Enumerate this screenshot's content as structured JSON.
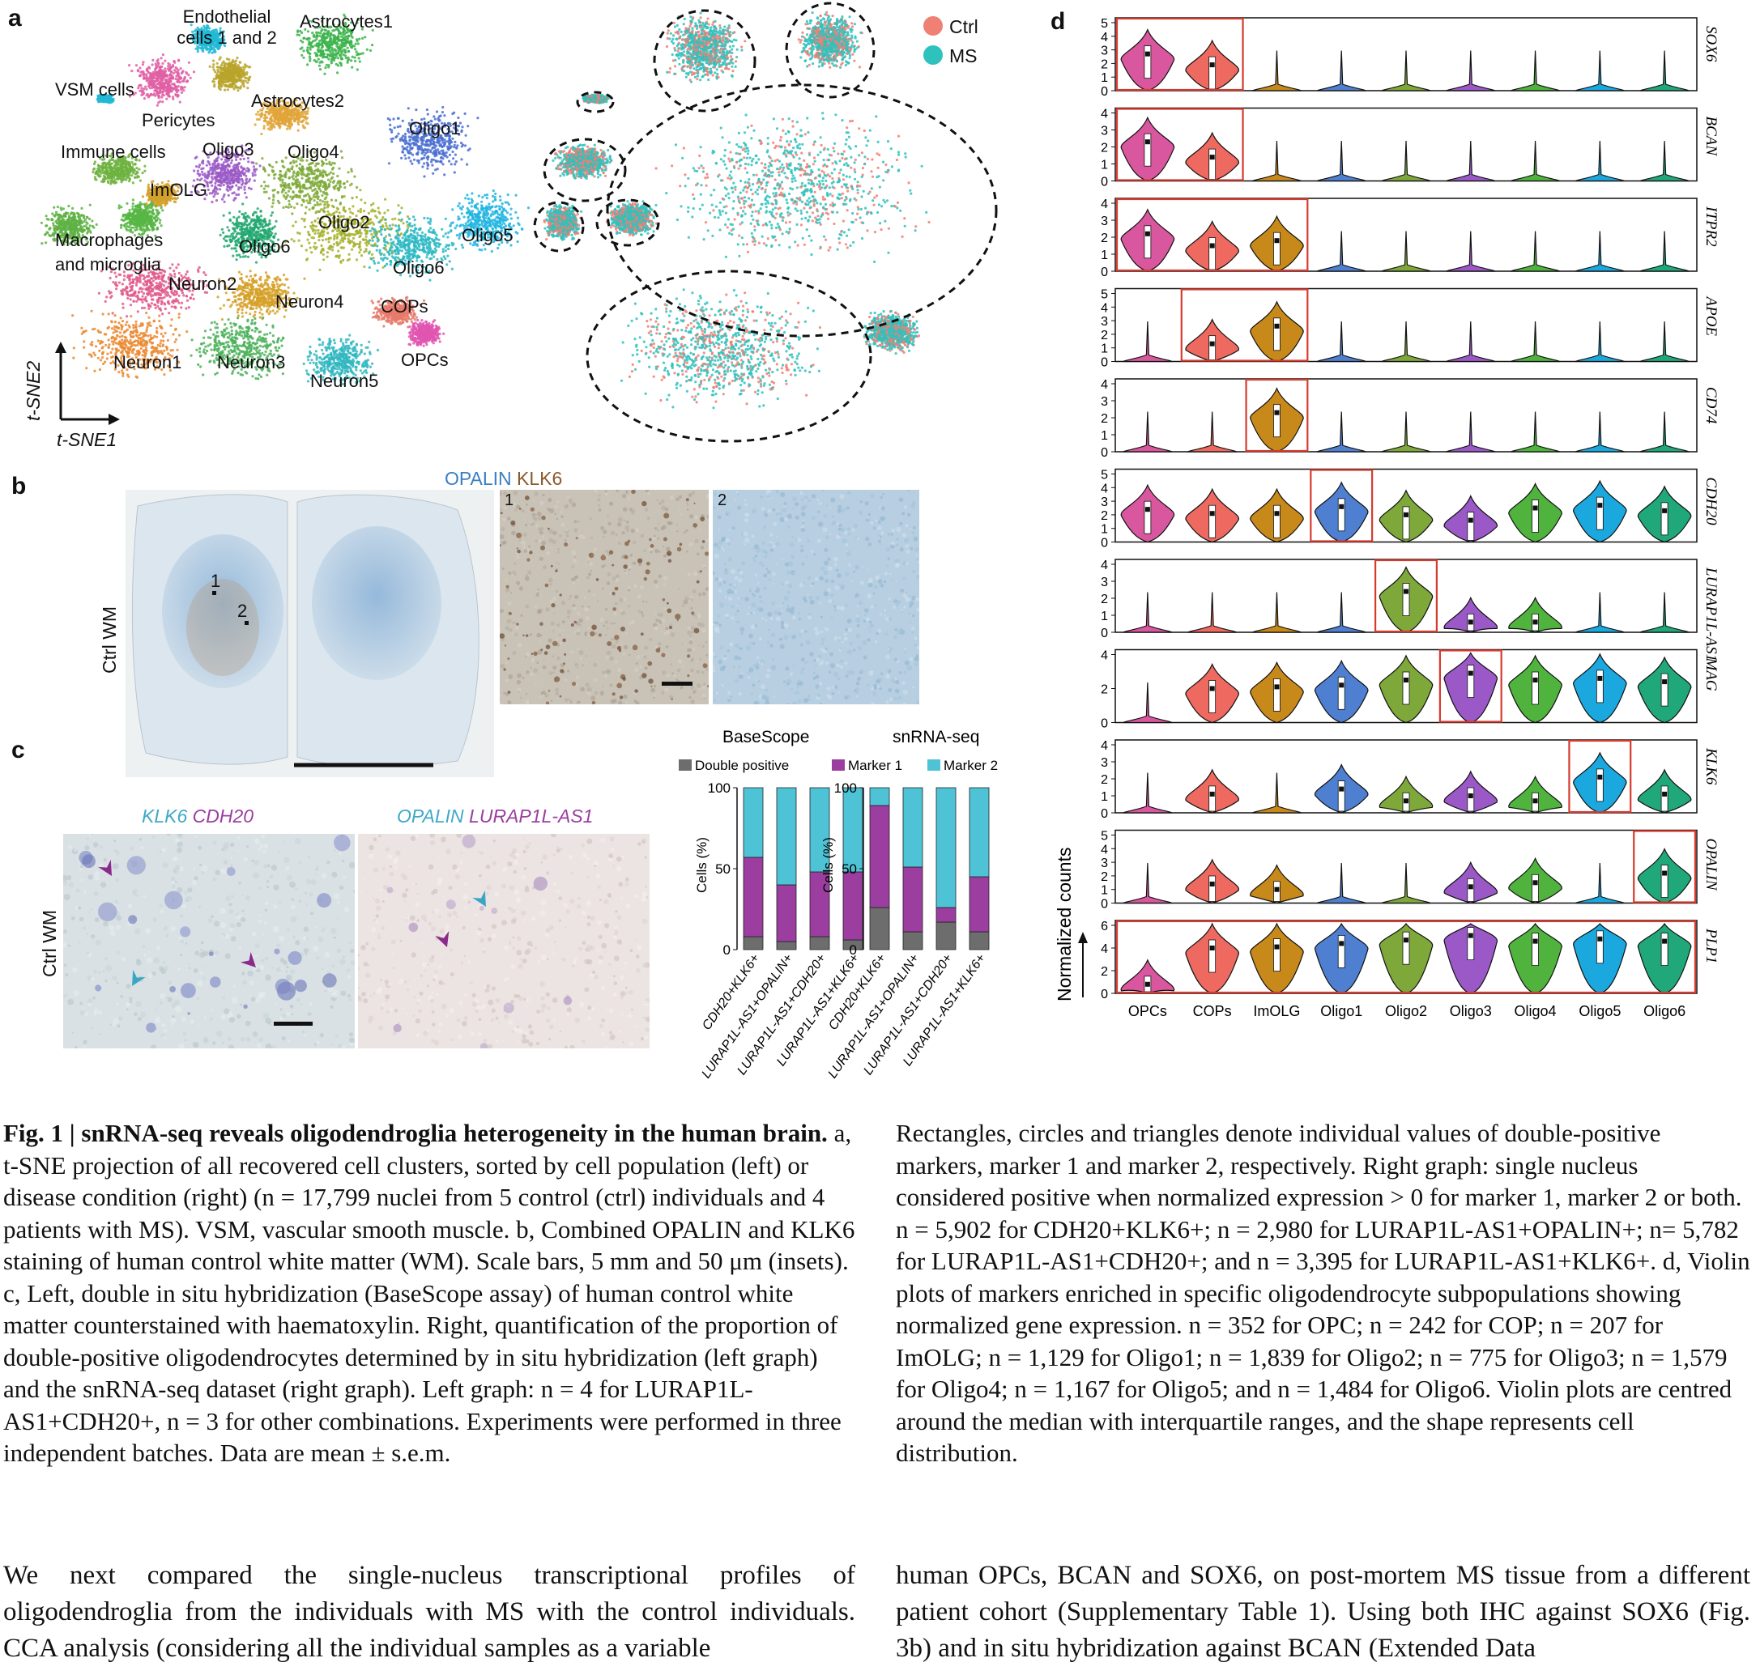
{
  "panel_a": {
    "label": "a",
    "clusters": [
      "Endothelial cells 1 and 2",
      "Astrocytes1",
      "VSM cells",
      "Pericytes",
      "Astrocytes2",
      "Oligo1",
      "Immune cells",
      "Oligo3",
      "Oligo4",
      "ImOLG",
      "Oligo2",
      "Macrophages and microglia",
      "Oligo6",
      "Oligo5",
      "Oligo6",
      "Neuron2",
      "Neuron4",
      "COPs",
      "Neuron1",
      "Neuron3",
      "Neuron5",
      "OPCs"
    ],
    "axis_y": "t-SNE2",
    "axis_x": "t-SNE1",
    "legend": [
      {
        "name": "Ctrl",
        "color": "#f07f74"
      },
      {
        "name": "MS",
        "color": "#2fc2bd"
      }
    ]
  },
  "panel_b": {
    "label": "b",
    "title_opalin": "OPALIN",
    "title_klk6": "KLK6",
    "side": "Ctrl WM",
    "inset1": "1",
    "inset2": "2",
    "mark1": "1",
    "mark2": "2"
  },
  "panel_c": {
    "label": "c",
    "img1_g1": "KLK6",
    "img1_g2": "CDH20",
    "img2_g1": "OPALIN",
    "img2_g2": "LURAP1L-AS1",
    "side": "Ctrl WM"
  },
  "chart_data": [
    {
      "type": "bar",
      "title": "BaseScope",
      "ylabel": "Cells (%)",
      "ylim": [
        0,
        100
      ],
      "yticks": [
        "0",
        "50",
        "100"
      ],
      "categories": [
        "CDH20+KLK6+",
        "LURAP1L-AS1+OPALIN+",
        "LURAP1L-AS1+CDH20+",
        "LURAP1L-AS1+KLK6+"
      ],
      "legend": [
        "Double positive",
        "Marker 1",
        "Marker 2"
      ],
      "colors": [
        "#6d6d6d",
        "#9b3ea0",
        "#4fc3d6"
      ],
      "series": [
        {
          "name": "Double positive",
          "values": [
            8,
            5,
            8,
            6
          ]
        },
        {
          "name": "Marker 1",
          "values": [
            49,
            35,
            40,
            42
          ]
        },
        {
          "name": "Marker 2",
          "values": [
            43,
            60,
            52,
            52
          ]
        }
      ]
    },
    {
      "type": "bar",
      "title": "snRNA-seq",
      "ylabel": "Cells (%)",
      "ylim": [
        0,
        100
      ],
      "yticks": [
        "0",
        "50",
        "100"
      ],
      "categories": [
        "CDH20+KLK6+",
        "LURAP1L-AS1+OPALIN+",
        "LURAP1L-AS1+CDH20+",
        "LURAP1L-AS1+KLK6+"
      ],
      "colors": [
        "#6d6d6d",
        "#9b3ea0",
        "#4fc3d6"
      ],
      "series": [
        {
          "name": "Double positive",
          "values": [
            26,
            11,
            17,
            11
          ]
        },
        {
          "name": "Marker 1",
          "values": [
            63,
            40,
            9,
            34
          ]
        },
        {
          "name": "Marker 2",
          "values": [
            11,
            49,
            74,
            55
          ]
        }
      ]
    },
    {
      "type": "violin",
      "panel": "d",
      "ylabel": "Normalized counts",
      "categories": [
        "OPCs",
        "COPs",
        "ImOLG",
        "Oligo1",
        "Oligo2",
        "Oligo3",
        "Oligo4",
        "Oligo5",
        "Oligo6"
      ],
      "colors": [
        "#d9579e",
        "#ee6a60",
        "#c8891b",
        "#4f7fd0",
        "#7ea83a",
        "#9b59c7",
        "#4fb33e",
        "#1ba8de",
        "#21a87a"
      ],
      "genes": [
        {
          "name": "SOX6",
          "ymax": 5,
          "yticks": [
            "0",
            "1",
            "2",
            "3",
            "4",
            "5"
          ],
          "medians": [
            2.7,
            1.9,
            0.1,
            0.05,
            0.05,
            0.05,
            0.05,
            0.05,
            0.05
          ],
          "highlight": [
            0,
            1
          ]
        },
        {
          "name": "BCAN",
          "ymax": 4,
          "yticks": [
            "0",
            "1",
            "2",
            "3",
            "4"
          ],
          "medians": [
            2.3,
            1.4,
            0.1,
            0.05,
            0.05,
            0.05,
            0.05,
            0.05,
            0.05
          ],
          "highlight": [
            0,
            1
          ]
        },
        {
          "name": "ITPR2",
          "ymax": 4,
          "yticks": [
            "0",
            "1",
            "2",
            "3",
            "4"
          ],
          "medians": [
            2.2,
            1.5,
            1.8,
            0.1,
            0.1,
            0.1,
            0.1,
            0.2,
            0.1
          ],
          "highlight": [
            0,
            2
          ]
        },
        {
          "name": "APOE",
          "ymax": 5,
          "yticks": [
            "0",
            "1",
            "2",
            "3",
            "4",
            "5"
          ],
          "medians": [
            0.3,
            1.3,
            2.6,
            0.1,
            0.1,
            0.1,
            0.1,
            0.3,
            0.1
          ],
          "highlight": [
            1,
            2
          ]
        },
        {
          "name": "CD74",
          "ymax": 4,
          "yticks": [
            "0",
            "1",
            "2",
            "3",
            "4"
          ],
          "medians": [
            0.1,
            0.2,
            2.3,
            0.05,
            0.05,
            0.05,
            0.05,
            0.05,
            0.05
          ],
          "highlight": [
            2,
            2
          ]
        },
        {
          "name": "CDH20",
          "ymax": 5,
          "yticks": [
            "0",
            "1",
            "2",
            "3",
            "4",
            "5"
          ],
          "medians": [
            2.4,
            2.1,
            2.1,
            2.6,
            2.0,
            1.6,
            2.5,
            2.7,
            2.3
          ],
          "highlight": [
            3,
            3
          ]
        },
        {
          "name": "LURAP1L-AS1",
          "ymax": 4,
          "yticks": [
            "0",
            "1",
            "2",
            "3",
            "4"
          ],
          "medians": [
            0.1,
            0.3,
            0.3,
            0.3,
            2.4,
            0.6,
            0.6,
            0.2,
            0.3
          ],
          "highlight": [
            4,
            4
          ]
        },
        {
          "name": "MAG",
          "ymax": 4,
          "yticks": [
            "0",
            "2",
            "4"
          ],
          "medians": [
            0.2,
            2.0,
            2.1,
            2.2,
            2.5,
            2.9,
            2.5,
            2.6,
            2.4
          ],
          "highlight": [
            5,
            5
          ]
        },
        {
          "name": "KLK6",
          "ymax": 4,
          "yticks": [
            "0",
            "1",
            "2",
            "3",
            "4"
          ],
          "medians": [
            0.1,
            1.1,
            0.3,
            1.4,
            0.7,
            1.0,
            0.7,
            2.1,
            1.1
          ],
          "highlight": [
            7,
            7
          ]
        },
        {
          "name": "OPALIN",
          "ymax": 5,
          "yticks": [
            "0",
            "1",
            "2",
            "3",
            "4",
            "5"
          ],
          "medians": [
            0.05,
            1.4,
            1.0,
            0.1,
            0.4,
            1.2,
            1.5,
            0.05,
            2.2
          ],
          "highlight": [
            8,
            8
          ]
        },
        {
          "name": "PLP1",
          "ymax": 6,
          "yticks": [
            "0",
            "2",
            "4",
            "6"
          ],
          "medians": [
            0.8,
            4.0,
            4.1,
            4.4,
            4.7,
            5.1,
            4.6,
            4.8,
            4.6
          ],
          "highlight": [
            0,
            8
          ]
        }
      ]
    }
  ],
  "panel_d_label": "d",
  "caption_left": {
    "fig": "Fig. 1 | snRNA-seq reveals oligodendroglia heterogeneity in the human brain.",
    "text": " a, t-SNE projection of all recovered cell clusters, sorted by cell population (left) or disease condition (right) (n = 17,799 nuclei from 5 control (ctrl) individuals and 4 patients with MS). VSM, vascular smooth muscle. b, Combined OPALIN and KLK6 staining of human control white matter (WM). Scale bars, 5 mm and 50 μm (insets). c, Left, double in situ hybridization (BaseScope assay) of human control white matter counterstained with haematoxylin. Right, quantification of the proportion of double-positive oligodendrocytes determined by in situ hybridization (left graph) and the snRNA-seq dataset (right graph). Left graph: n = 4 for LURAP1L-AS1+CDH20+, n = 3 for other combinations. Experiments were performed in three independent batches. Data are mean ± s.e.m."
  },
  "caption_right": {
    "text": "Rectangles, circles and triangles denote individual values of double-positive markers, marker 1 and marker 2, respectively. Right graph: single nucleus considered positive when normalized expression > 0 for marker 1, marker 2 or both. n = 5,902 for CDH20+KLK6+; n = 2,980 for LURAP1L-AS1+OPALIN+; n= 5,782 for LURAP1L-AS1+CDH20+; and n = 3,395 for LURAP1L-AS1+KLK6+. d, Violin plots of markers enriched in specific oligodendrocyte subpopulations showing normalized gene expression. n = 352 for OPC; n = 242 for COP; n = 207 for ImOLG; n = 1,129 for Oligo1; n = 1,839 for Oligo2; n = 775 for Oligo3; n = 1,579 for Oligo4; n = 1,167 for Oligo5; and n = 1,484 for Oligo6. Violin plots are centred around the median with interquartile ranges, and the shape represents cell distribution."
  },
  "body_left": "We next compared the single-nucleus transcriptional profiles of oligodendroglia from the individuals with MS with the control individuals. CCA analysis (considering all the individual samples as a variable",
  "body_right": "human OPCs, BCAN and SOX6, on post-mortem MS tissue from a different patient cohort (Supplementary Table 1). Using both IHC against SOX6 (Fig. 3b) and in situ hybridization against BCAN (Extended Data"
}
